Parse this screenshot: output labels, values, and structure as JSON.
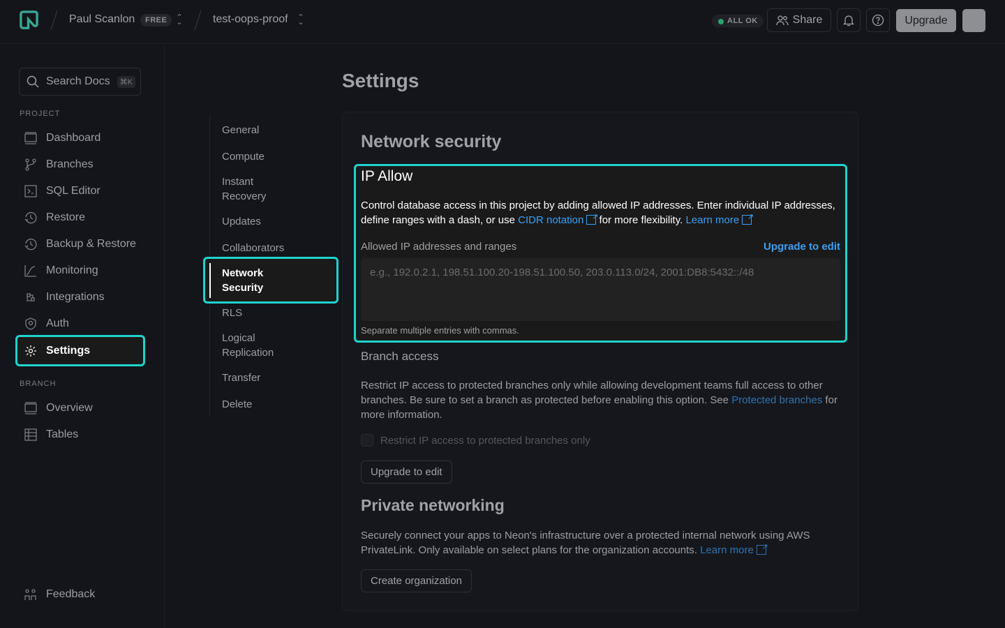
{
  "header": {
    "org": "Paul Scanlon",
    "plan_badge": "FREE",
    "project": "test-oops-proof",
    "status": "ALL OK",
    "share": "Share",
    "upgrade": "Upgrade"
  },
  "sidebar": {
    "search": "Search Docs",
    "search_shortcut": "⌘K",
    "project_label": "PROJECT",
    "project_items": [
      {
        "label": "Dashboard"
      },
      {
        "label": "Branches"
      },
      {
        "label": "SQL Editor"
      },
      {
        "label": "Restore"
      },
      {
        "label": "Backup & Restore"
      },
      {
        "label": "Monitoring"
      },
      {
        "label": "Integrations"
      },
      {
        "label": "Auth"
      },
      {
        "label": "Settings"
      }
    ],
    "branch_label": "BRANCH",
    "branch_items": [
      {
        "label": "Overview"
      },
      {
        "label": "Tables"
      }
    ],
    "feedback": "Feedback"
  },
  "settings_nav": [
    "General",
    "Compute",
    "Instant Recovery",
    "Updates",
    "Collaborators",
    "Network Security",
    "RLS",
    "Logical Replication",
    "Transfer",
    "Delete"
  ],
  "page": {
    "title": "Settings",
    "section_title": "Network security",
    "ip_allow": {
      "title": "IP Allow",
      "desc_1": "Control database access in this project by adding allowed IP addresses. Enter individual IP addresses, define ranges with a dash, or use ",
      "cidr_link": "CIDR notation",
      "desc_2": " for more flexibility. ",
      "learn_more": "Learn more",
      "field_label": "Allowed IP addresses and ranges",
      "upgrade_link": "Upgrade to edit",
      "placeholder": "e.g., 192.0.2.1, 198.51.100.20-198.51.100.50, 203.0.113.0/24, 2001:DB8:5432::/48",
      "hint": "Separate multiple entries with commas."
    },
    "branch_access": {
      "title": "Branch access",
      "desc_1": "Restrict IP access to protected branches only while allowing development teams full access to other branches. Be sure to set a branch as protected before enabling this option. See ",
      "link": "Protected branches",
      "desc_2": " for more information.",
      "checkbox_label": "Restrict IP access to protected branches only",
      "checkbox_checked": false,
      "button": "Upgrade to edit"
    },
    "private_networking": {
      "title": "Private networking",
      "desc": "Securely connect your apps to Neon's infrastructure over a protected internal network using AWS PrivateLink. Only available on select plans for the organization accounts. ",
      "learn_more": "Learn more",
      "button": "Create organization"
    }
  },
  "colors": {
    "highlight": "#1fd3cc",
    "link": "#3ba0f6",
    "background": "#13151b"
  }
}
